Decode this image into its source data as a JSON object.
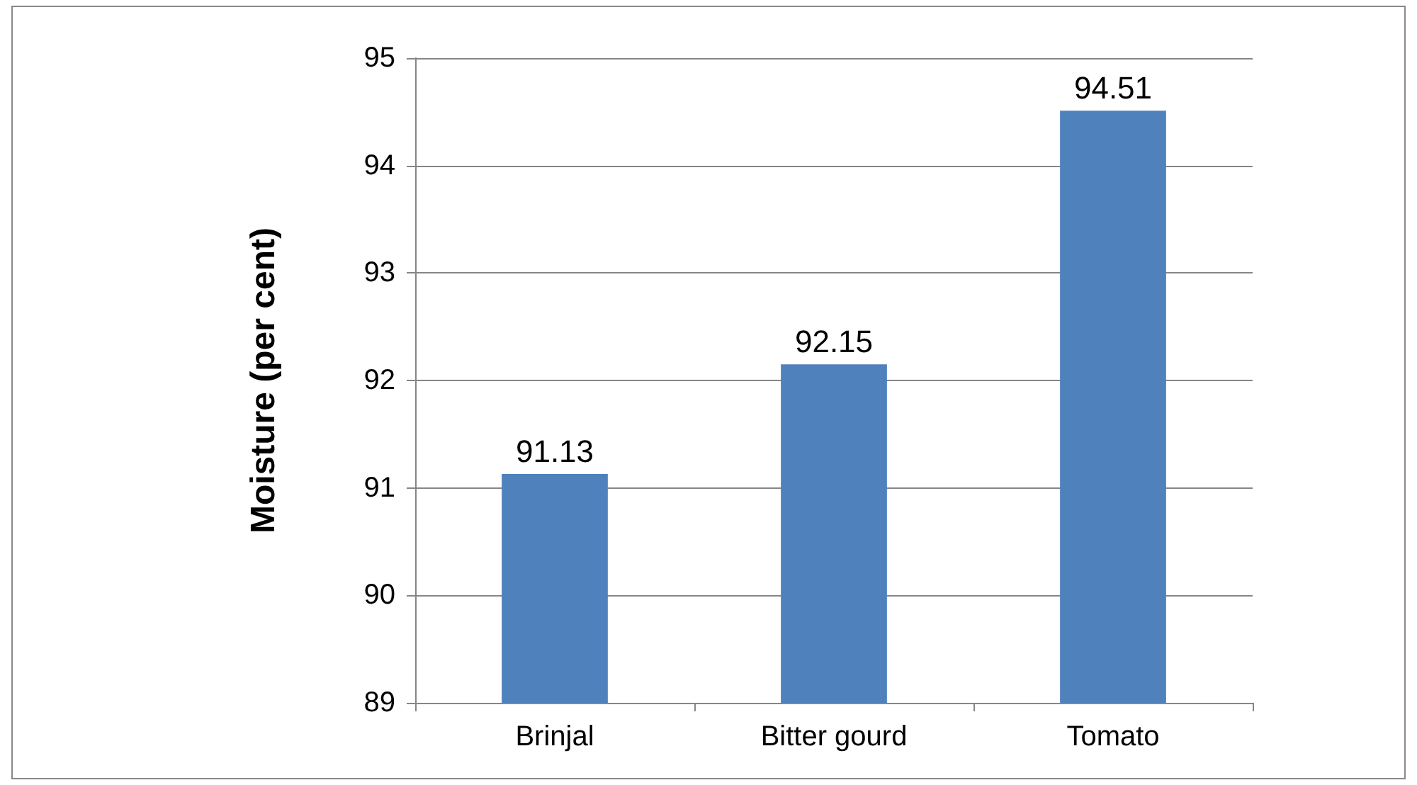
{
  "chart_data": {
    "type": "bar",
    "ylabel": "Moisture (per cent)",
    "categories": [
      "Brinjal",
      "Bitter gourd",
      "Tomato"
    ],
    "values": [
      91.13,
      92.15,
      94.51
    ],
    "color": "#4f81bd",
    "ylim": [
      89,
      95
    ],
    "yticks": [
      89,
      90,
      91,
      92,
      93,
      94,
      95
    ],
    "grid": "y",
    "data_labels": true
  }
}
